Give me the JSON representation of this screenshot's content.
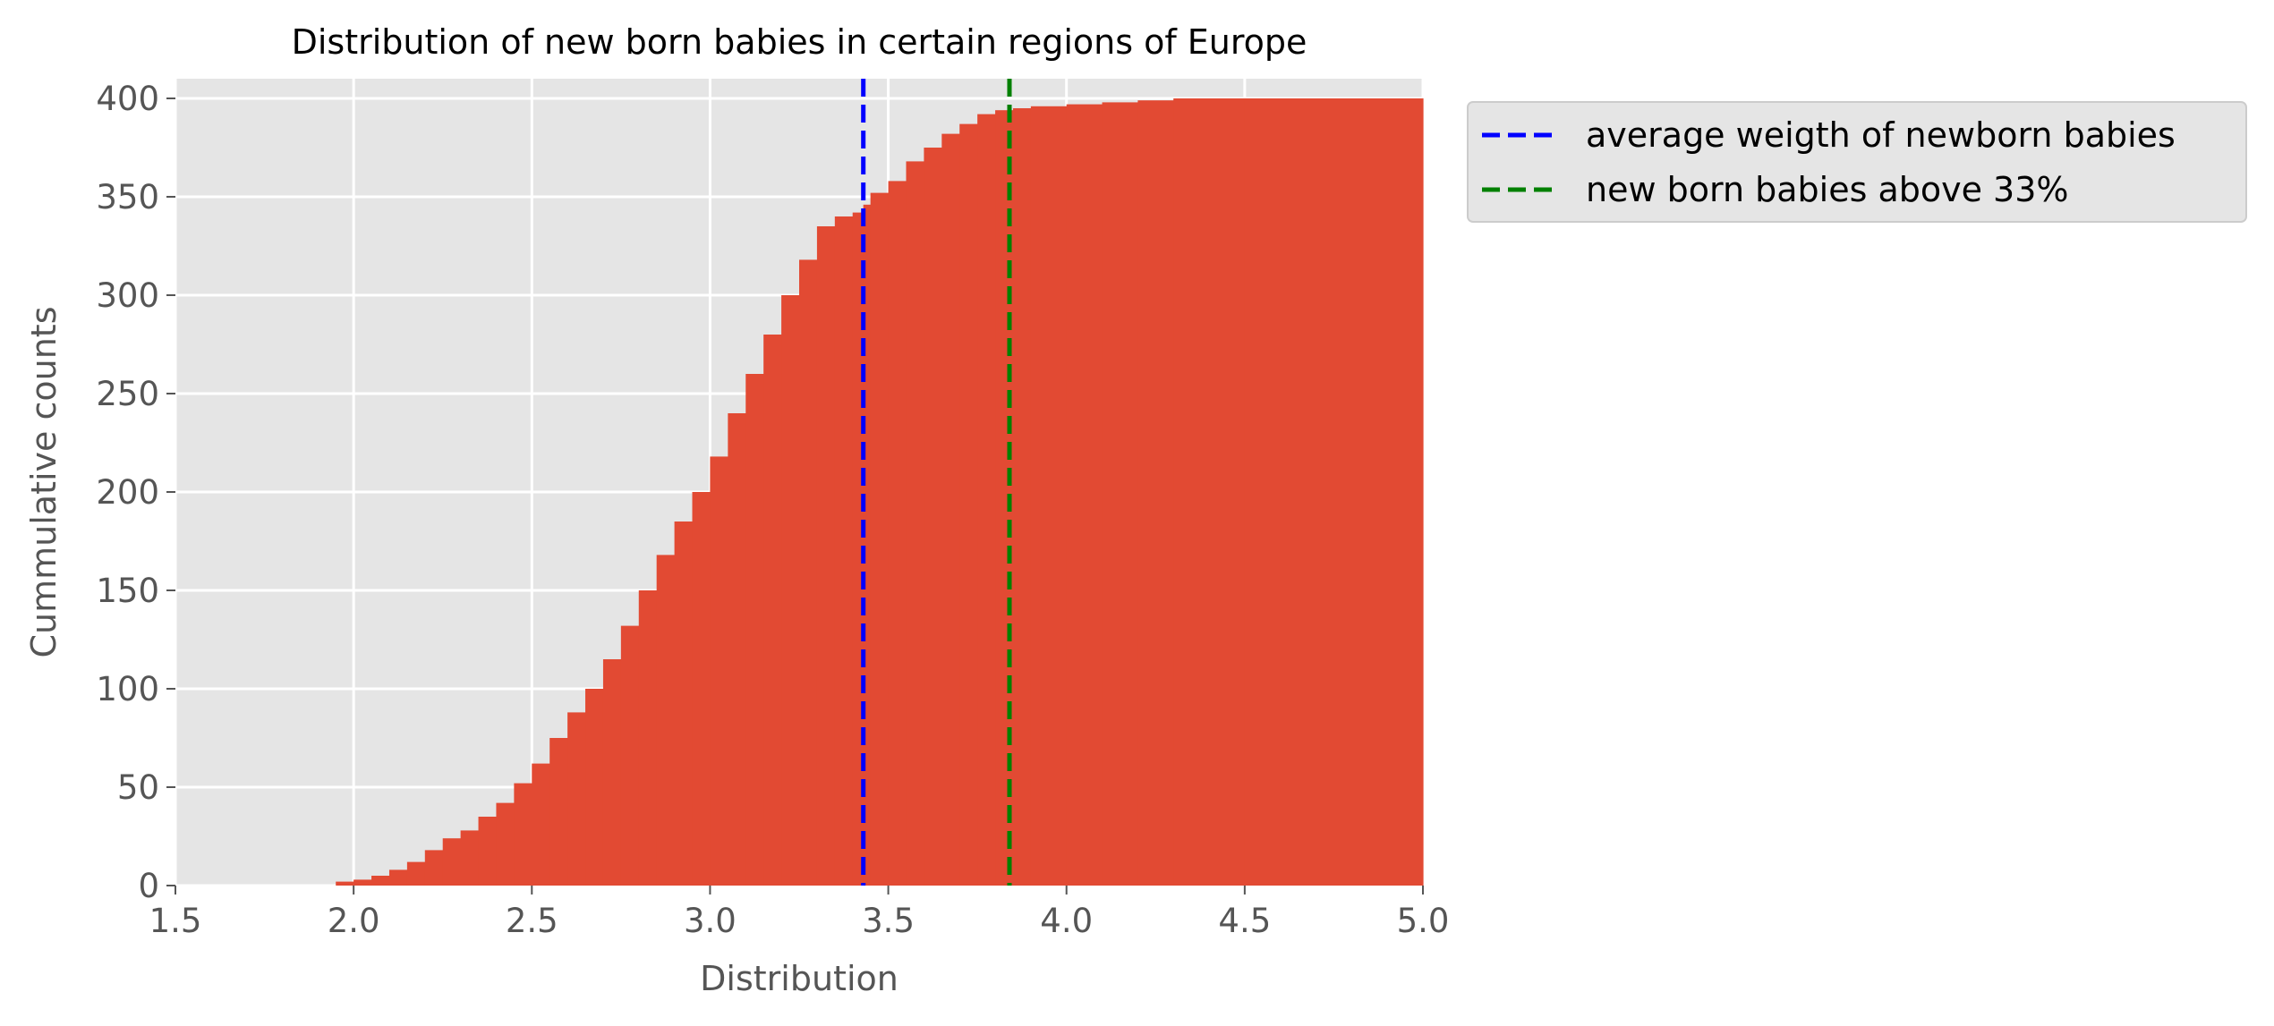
{
  "chart_data": {
    "type": "histogram",
    "cumulative": true,
    "title": "Distribution of new born babies in certain regions of Europe",
    "xlabel": "Distribution",
    "ylabel": "Cummulative counts",
    "xlim": [
      1.5,
      5.0
    ],
    "ylim": [
      0,
      410
    ],
    "xticks": [
      "1.5",
      "2.0",
      "2.5",
      "3.0",
      "3.5",
      "4.0",
      "4.5",
      "5.0"
    ],
    "yticks": [
      "0",
      "50",
      "100",
      "150",
      "200",
      "250",
      "300",
      "350",
      "400"
    ],
    "grid": true,
    "background": "#e5e5e5",
    "series": [
      {
        "color": "#e24a33",
        "x": [
          1.83,
          1.95,
          2.0,
          2.05,
          2.1,
          2.15,
          2.2,
          2.25,
          2.3,
          2.35,
          2.4,
          2.45,
          2.5,
          2.55,
          2.6,
          2.65,
          2.7,
          2.75,
          2.8,
          2.85,
          2.9,
          2.95,
          3.0,
          3.05,
          3.1,
          3.15,
          3.2,
          3.25,
          3.3,
          3.35,
          3.4,
          3.43,
          3.45,
          3.5,
          3.55,
          3.6,
          3.65,
          3.7,
          3.75,
          3.8,
          3.85,
          3.9,
          4.0,
          4.1,
          4.2,
          4.3,
          4.5,
          5.0
        ],
        "y": [
          0,
          2,
          3,
          5,
          8,
          12,
          18,
          24,
          28,
          35,
          42,
          52,
          62,
          75,
          88,
          100,
          115,
          132,
          150,
          168,
          185,
          200,
          218,
          240,
          260,
          280,
          300,
          318,
          335,
          340,
          342,
          346,
          352,
          358,
          368,
          375,
          382,
          387,
          392,
          394,
          395,
          396,
          397,
          398,
          399,
          400,
          400,
          400
        ]
      }
    ],
    "vlines": [
      {
        "x": 3.43,
        "label": "average weigth of newborn babies",
        "color": "#0000ff",
        "style": "dashed"
      },
      {
        "x": 3.84,
        "label": "new born babies above 33%",
        "color": "#008000",
        "style": "dashed"
      }
    ],
    "legend_position": "outside-top-right"
  }
}
